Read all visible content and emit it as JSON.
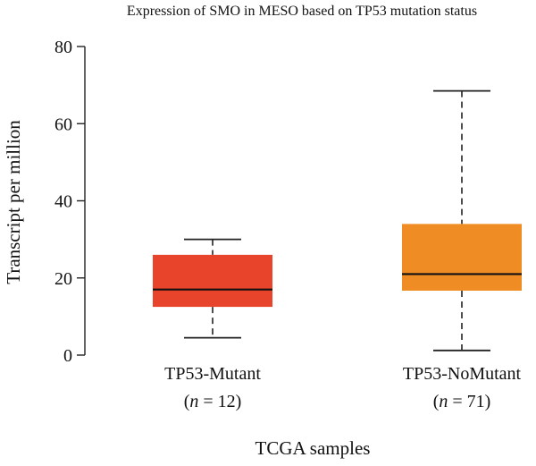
{
  "chart_data": {
    "type": "box",
    "title": "Expression of SMO in MESO based on TP53 mutation status",
    "xlabel": "TCGA samples",
    "ylabel": "Transcript per million",
    "ylim": [
      0,
      80
    ],
    "yticks": [
      "0",
      "20",
      "40",
      "60",
      "80"
    ],
    "grid": false,
    "boxes": [
      {
        "category": "TP53-Mutant",
        "n_label_prefix": "(",
        "n_symbol": "n",
        "n_label_suffix": " = 12)",
        "color": "#e8442b",
        "whisker_low": 4.5,
        "q1": 12.5,
        "median": 17,
        "q3": 26,
        "whisker_high": 30
      },
      {
        "category": "TP53-NoMutant",
        "n_label_prefix": "(",
        "n_symbol": "n",
        "n_label_suffix": " = 71)",
        "color": "#f08c24",
        "whisker_low": 1.2,
        "q1": 16.7,
        "median": 21,
        "q3": 34,
        "whisker_high": 68.5
      }
    ]
  }
}
